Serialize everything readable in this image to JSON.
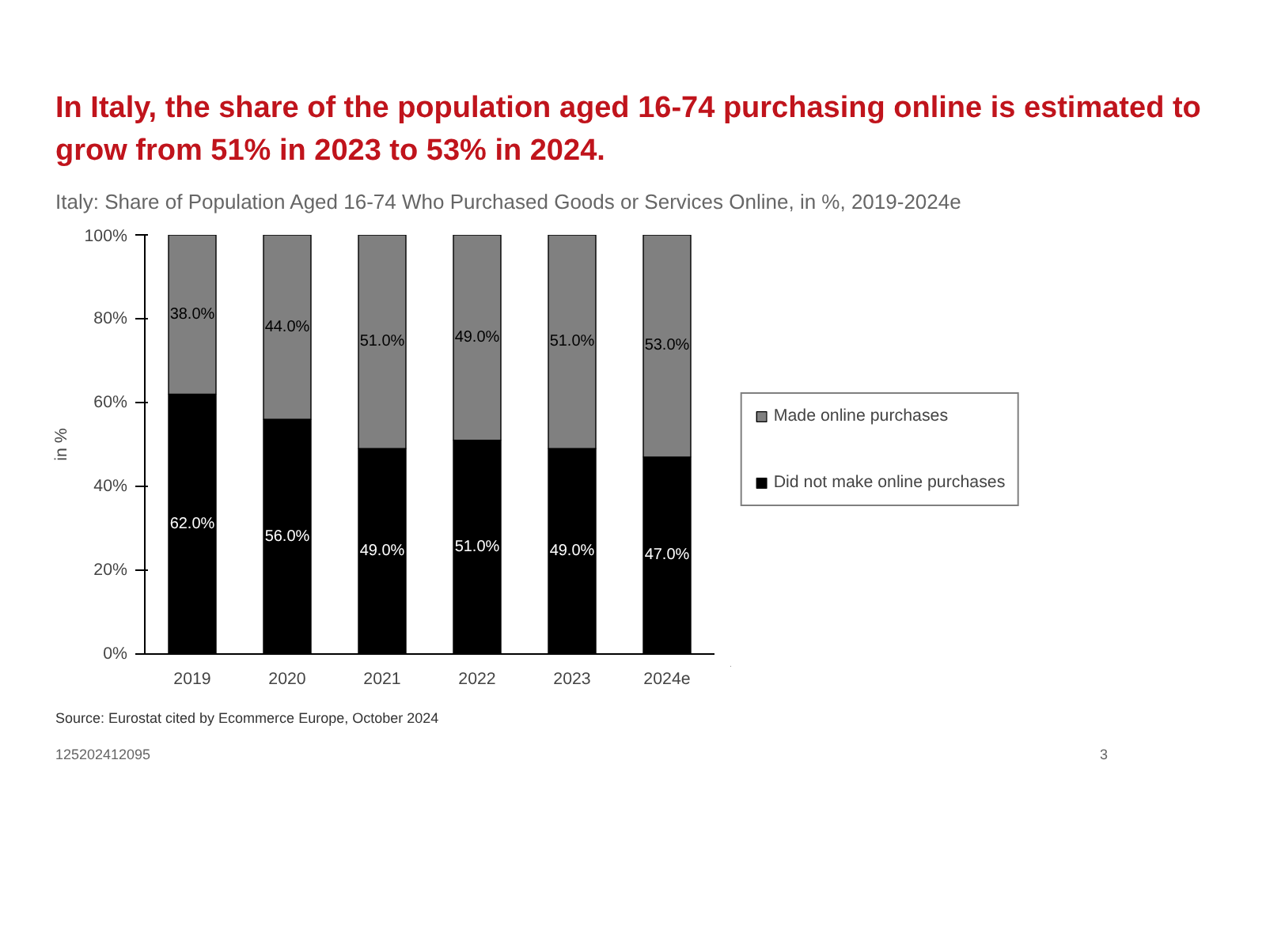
{
  "chart_data": {
    "type": "bar",
    "title": "In Italy, the share of the population aged 16-74 purchasing online is estimated to grow from 51% in 2023 to 53% in 2024.",
    "subtitle": "Italy: Share of Population Aged 16-74 Who Purchased Goods or Services Online, in %, 2019-2024e",
    "ylabel": "in %",
    "categories": [
      "2019",
      "2020",
      "2021",
      "2022",
      "2023",
      "2024e"
    ],
    "stacked": true,
    "series": [
      {
        "name": "Did not make online purchases",
        "color": "#000000",
        "values": [
          62,
          56,
          49,
          51,
          49,
          47
        ],
        "value_labels": [
          "62.0%",
          "56.0%",
          "49.0%",
          "51.0%",
          "49.0%",
          "47.0%"
        ]
      },
      {
        "name": "Made online purchases",
        "color": "#808080",
        "values": [
          38,
          44,
          51,
          49,
          51,
          53
        ],
        "value_labels": [
          "38.0%",
          "44.0%",
          "51.0%",
          "49.0%",
          "51.0%",
          "53.0%"
        ]
      }
    ],
    "ylim": [
      0,
      100
    ],
    "yticks": [
      {
        "value": 0,
        "label": "0%"
      },
      {
        "value": 20,
        "label": "20%"
      },
      {
        "value": 40,
        "label": "40%"
      },
      {
        "value": 60,
        "label": "60%"
      },
      {
        "value": 80,
        "label": "80%"
      },
      {
        "value": 100,
        "label": "100%"
      }
    ],
    "grid": false,
    "legend": "right",
    "annotations": [
      "Source:    Eurostat cited by Ecommerce Europe, October 2024",
      "125202412095",
      "3"
    ]
  }
}
